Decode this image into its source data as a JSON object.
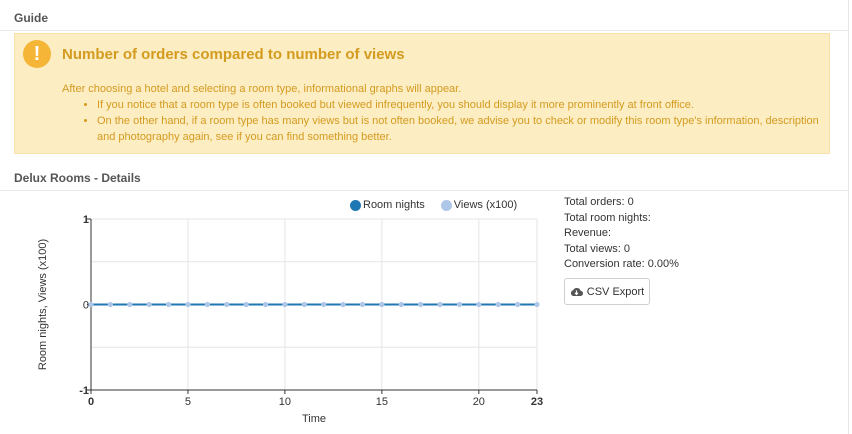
{
  "guide": {
    "heading": "Guide",
    "alert": {
      "icon": "exclamation-icon",
      "icon_glyph": "!",
      "title": "Number of orders compared to number of views",
      "intro": "After choosing a hotel and selecting a room type, informational graphs will appear.",
      "bullets": [
        "If you notice that a room type is often booked but viewed infrequently, you should display it more prominently at front office.",
        "On the other hand, if a room type has many views but is not often booked, we advise you to check or modify this room type's information, description and photography again, see if you can find something better."
      ]
    }
  },
  "details": {
    "heading": "Delux Rooms - Details",
    "stats": {
      "total_orders": "Total orders: 0",
      "total_room_nights": "Total room nights:",
      "revenue": "Revenue:",
      "total_views": "Total views: 0",
      "conversion_rate": "Conversion rate: 0.00%"
    },
    "csv_export_label": "CSV Export",
    "csv_icon": "cloud-download-icon"
  },
  "chart_data": {
    "type": "line",
    "x": [
      0,
      1,
      2,
      3,
      4,
      5,
      6,
      7,
      8,
      9,
      10,
      11,
      12,
      13,
      14,
      15,
      16,
      17,
      18,
      19,
      20,
      21,
      22,
      23
    ],
    "series": [
      {
        "name": "Room nights",
        "color": "#1f77b4",
        "values": [
          0,
          0,
          0,
          0,
          0,
          0,
          0,
          0,
          0,
          0,
          0,
          0,
          0,
          0,
          0,
          0,
          0,
          0,
          0,
          0,
          0,
          0,
          0,
          0
        ]
      },
      {
        "name": "Views (x100)",
        "color": "#aec7e8",
        "values": [
          0,
          0,
          0,
          0,
          0,
          0,
          0,
          0,
          0,
          0,
          0,
          0,
          0,
          0,
          0,
          0,
          0,
          0,
          0,
          0,
          0,
          0,
          0,
          0
        ]
      }
    ],
    "xlabel": "Time",
    "ylabel": "Room nights, Views (x100)",
    "xlim": [
      0,
      23
    ],
    "ylim": [
      -1,
      1
    ],
    "x_ticks": [
      "0",
      "5",
      "10",
      "15",
      "20",
      "23"
    ],
    "y_ticks": [
      "-1",
      "0",
      "1"
    ],
    "grid": true,
    "legend_position": "top-right"
  }
}
